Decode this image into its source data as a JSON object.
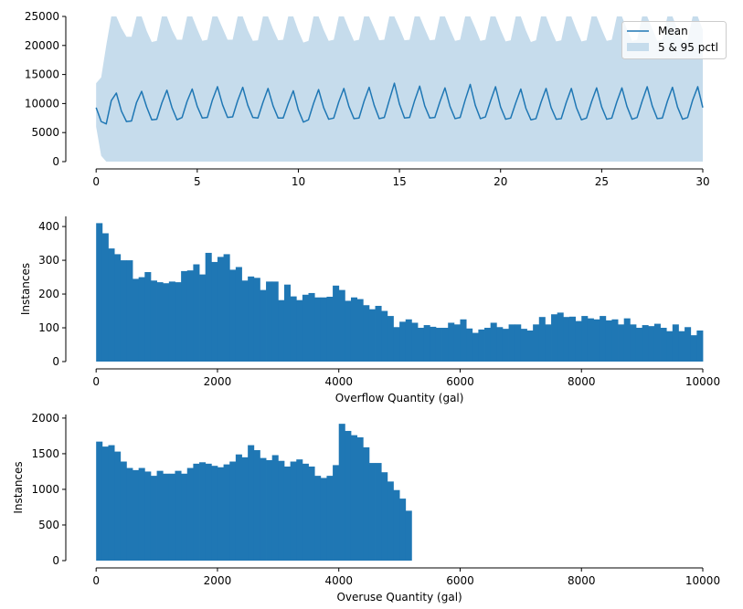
{
  "chart_data": [
    {
      "type": "line",
      "title": "",
      "xlabel": "",
      "ylabel": "",
      "xlim": [
        -1.5,
        30
      ],
      "ylim": [
        0,
        25000
      ],
      "x_ticks": [
        0,
        5,
        10,
        15,
        20,
        25,
        30
      ],
      "y_ticks": [
        0,
        5000,
        10000,
        15000,
        20000,
        25000
      ],
      "legend_position": "top-right",
      "series": [
        {
          "name": "Mean",
          "color": "#1f77b4",
          "x": [
            0,
            0.25,
            0.5,
            0.75,
            1,
            1.25,
            1.5,
            1.75,
            2,
            2.25,
            2.5,
            2.75,
            3,
            3.25,
            3.5,
            3.75,
            4,
            4.25,
            4.5,
            4.75,
            5,
            5.25,
            5.5,
            5.75,
            6,
            6.25,
            6.5,
            6.75,
            7,
            7.25,
            7.5,
            7.75,
            8,
            8.25,
            8.5,
            8.75,
            9,
            9.25,
            9.5,
            9.75,
            10,
            10.25,
            10.5,
            10.75,
            11,
            11.25,
            11.5,
            11.75,
            12,
            12.25,
            12.5,
            12.75,
            13,
            13.25,
            13.5,
            13.75,
            14,
            14.25,
            14.5,
            14.75,
            15,
            15.25,
            15.5,
            15.75,
            16,
            16.25,
            16.5,
            16.75,
            17,
            17.25,
            17.5,
            17.75,
            18,
            18.25,
            18.5,
            18.75,
            19,
            19.25,
            19.5,
            19.75,
            20,
            20.25,
            20.5,
            20.75,
            21,
            21.25,
            21.5,
            21.75,
            22,
            22.25,
            22.5,
            22.75,
            23,
            23.25,
            23.5,
            23.75,
            24,
            24.25,
            24.5,
            24.75,
            25,
            25.25,
            25.5,
            25.75,
            26,
            26.25,
            26.5,
            26.75,
            27,
            27.25,
            27.5,
            27.75,
            28,
            28.25,
            28.5,
            28.75,
            29,
            29.25,
            29.5,
            29.75,
            30
          ],
          "values": [
            9300,
            6900,
            6500,
            10500,
            11800,
            8700,
            6900,
            7000,
            10200,
            12100,
            9400,
            7200,
            7300,
            10100,
            12300,
            9300,
            7200,
            7600,
            10400,
            12500,
            9500,
            7500,
            7600,
            10600,
            12900,
            9800,
            7600,
            7700,
            10500,
            12800,
            9700,
            7600,
            7500,
            10200,
            12600,
            9600,
            7500,
            7500,
            10000,
            12200,
            8900,
            6800,
            7200,
            10000,
            12400,
            9300,
            7300,
            7500,
            10300,
            12600,
            9500,
            7400,
            7500,
            10400,
            12800,
            9700,
            7400,
            7600,
            10600,
            13500,
            9900,
            7500,
            7600,
            10500,
            13000,
            9600,
            7500,
            7600,
            10300,
            12700,
            9500,
            7400,
            7600,
            10600,
            13300,
            9700,
            7400,
            7700,
            10400,
            12900,
            9400,
            7300,
            7500,
            10100,
            12500,
            9200,
            7200,
            7400,
            10200,
            12600,
            9300,
            7300,
            7400,
            10200,
            12600,
            9300,
            7200,
            7500,
            10300,
            12700,
            9400,
            7300,
            7500,
            10300,
            12700,
            9500,
            7300,
            7600,
            10400,
            12900,
            9600,
            7400,
            7500,
            10400,
            12800,
            9400,
            7300,
            7600,
            10600,
            12900,
            9300
          ]
        },
        {
          "name": "5 & 95 pctl",
          "color": "#c6dcec",
          "lower": [
            6000,
            1000,
            0,
            0,
            0,
            0,
            0,
            0,
            0,
            0,
            0,
            0,
            0,
            0,
            0,
            0,
            0,
            0,
            0,
            0,
            0,
            0,
            0,
            0,
            0,
            0,
            0,
            0,
            0,
            0,
            0,
            0,
            0,
            0,
            0,
            0,
            0,
            0,
            0,
            0,
            0,
            0,
            0,
            0,
            0,
            0,
            0,
            0,
            0,
            0,
            0,
            0,
            0,
            0,
            0,
            0,
            0,
            0,
            0,
            0,
            0,
            0,
            0,
            0,
            0,
            0,
            0,
            0,
            0,
            0,
            0,
            0,
            0,
            0,
            0,
            0,
            0,
            0,
            0,
            0,
            0,
            0,
            0,
            0,
            0,
            0,
            0,
            0,
            0,
            0,
            0,
            0,
            0,
            0,
            0,
            0,
            0,
            0,
            0,
            0,
            0,
            0,
            0,
            0,
            0,
            0,
            0,
            0,
            0,
            0,
            0,
            0,
            0,
            0,
            0,
            0,
            0,
            0,
            0,
            0,
            0
          ],
          "upper": [
            13500,
            14500,
            20000,
            25000,
            25000,
            23000,
            21500,
            21500,
            25000,
            25000,
            22500,
            20600,
            20800,
            25000,
            25000,
            22700,
            21000,
            21000,
            25000,
            25000,
            22800,
            20800,
            21000,
            25000,
            25000,
            23000,
            21000,
            21000,
            25000,
            25000,
            22600,
            20800,
            20900,
            25000,
            25000,
            22800,
            20900,
            21000,
            25000,
            25000,
            22500,
            20500,
            20800,
            25000,
            25000,
            22700,
            20800,
            21000,
            25000,
            25000,
            22800,
            20800,
            21000,
            25000,
            25000,
            23000,
            20900,
            21000,
            25000,
            25000,
            23000,
            20900,
            21000,
            25000,
            25000,
            22900,
            20900,
            21000,
            25000,
            25000,
            22800,
            20800,
            21000,
            25000,
            25000,
            23000,
            20800,
            21000,
            25000,
            25000,
            22700,
            20700,
            20900,
            25000,
            25000,
            22600,
            20600,
            20900,
            25000,
            25000,
            22700,
            20700,
            20900,
            25000,
            25000,
            22700,
            20700,
            20900,
            25000,
            25000,
            22800,
            20800,
            21000,
            25000,
            25000,
            22800,
            20800,
            21000,
            25000,
            25000,
            22900,
            20800,
            21000,
            25000,
            25000,
            22800,
            20700,
            21000,
            25000,
            25000,
            22700
          ]
        }
      ]
    },
    {
      "type": "bar",
      "title": "",
      "xlabel": "Overflow Quantity (gal)",
      "ylabel": "Instances",
      "xlim": [
        -500,
        10000
      ],
      "ylim": [
        0,
        430
      ],
      "x_ticks": [
        0,
        2000,
        4000,
        6000,
        8000,
        10000
      ],
      "y_ticks": [
        0,
        100,
        200,
        300,
        400
      ],
      "bin_width": 100,
      "bin_start": 0,
      "color": "#1f77b4",
      "values": [
        410,
        380,
        335,
        318,
        300,
        300,
        245,
        250,
        265,
        240,
        235,
        232,
        237,
        235,
        268,
        270,
        288,
        258,
        322,
        295,
        310,
        318,
        272,
        280,
        240,
        252,
        248,
        212,
        237,
        237,
        182,
        228,
        193,
        182,
        198,
        203,
        190,
        190,
        192,
        225,
        212,
        180,
        190,
        185,
        167,
        155,
        165,
        150,
        135,
        102,
        118,
        125,
        115,
        100,
        108,
        103,
        100,
        100,
        115,
        110,
        125,
        98,
        85,
        95,
        100,
        115,
        102,
        97,
        110,
        110,
        97,
        92,
        110,
        132,
        110,
        140,
        145,
        132,
        133,
        120,
        135,
        128,
        125,
        135,
        122,
        125,
        110,
        128,
        110,
        100,
        108,
        105,
        112,
        100,
        90,
        110,
        90,
        102,
        78,
        92
      ]
    },
    {
      "type": "bar",
      "title": "",
      "xlabel": "Overuse Quantity (gal)",
      "ylabel": "Instances",
      "xlim": [
        -500,
        10000
      ],
      "ylim": [
        0,
        2050
      ],
      "x_ticks": [
        0,
        2000,
        4000,
        6000,
        8000,
        10000
      ],
      "y_ticks": [
        0,
        500,
        1000,
        1500,
        2000
      ],
      "bin_width": 100,
      "bin_start": 0,
      "color": "#1f77b4",
      "values": [
        1670,
        1600,
        1620,
        1530,
        1390,
        1300,
        1270,
        1300,
        1250,
        1190,
        1260,
        1220,
        1220,
        1260,
        1220,
        1300,
        1360,
        1380,
        1360,
        1330,
        1310,
        1350,
        1390,
        1490,
        1450,
        1620,
        1550,
        1440,
        1410,
        1480,
        1400,
        1320,
        1390,
        1420,
        1360,
        1320,
        1190,
        1160,
        1190,
        1340,
        1920,
        1820,
        1760,
        1730,
        1590,
        1370,
        1370,
        1240,
        1110,
        990,
        870,
        700
      ]
    }
  ]
}
